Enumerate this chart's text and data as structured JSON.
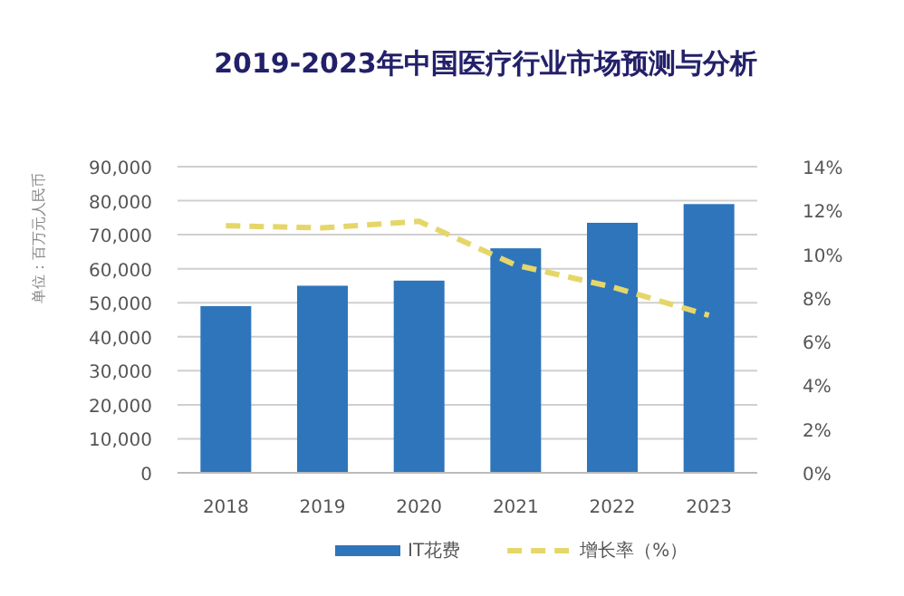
{
  "chart_data": {
    "type": "bar",
    "title": "2019-2023年中国医疗行业市场预测与分析",
    "ylabel": "单位：百万元人民币",
    "categories": [
      "2018",
      "2019",
      "2020",
      "2021",
      "2022",
      "2023"
    ],
    "series": [
      {
        "name": "IT花费",
        "color": "#2f75bb",
        "values": [
          49000,
          55000,
          56500,
          66000,
          73500,
          79000
        ]
      },
      {
        "name": "增长率（%）",
        "type": "line",
        "axis": "y2",
        "color": "#e6d66a",
        "line_style": "dashed",
        "marker": "none",
        "values": [
          11.3,
          11.2,
          11.5,
          9.5,
          8.5,
          7.2
        ]
      }
    ],
    "ylim": [
      0,
      90000
    ],
    "yticks": [
      {
        "value": 0,
        "label": "0"
      },
      {
        "value": 10000,
        "label": "10,000"
      },
      {
        "value": 20000,
        "label": "20,000"
      },
      {
        "value": 30000,
        "label": "30,000"
      },
      {
        "value": 40000,
        "label": "40,000"
      },
      {
        "value": 50000,
        "label": "50,000"
      },
      {
        "value": 60000,
        "label": "60,000"
      },
      {
        "value": 70000,
        "label": "70,000"
      },
      {
        "value": 80000,
        "label": "80,000"
      },
      {
        "value": 90000,
        "label": "90,000"
      }
    ],
    "y2lim": [
      0,
      14
    ],
    "y2ticks": [
      {
        "value": 0,
        "label": "0%"
      },
      {
        "value": 2,
        "label": "2%"
      },
      {
        "value": 4,
        "label": "4%"
      },
      {
        "value": 6,
        "label": "6%"
      },
      {
        "value": 8,
        "label": "8%"
      },
      {
        "value": 10,
        "label": "10%"
      },
      {
        "value": 12,
        "label": "12%"
      },
      {
        "value": 14,
        "label": "14%"
      }
    ],
    "grid": "y",
    "legend": "bottom"
  }
}
